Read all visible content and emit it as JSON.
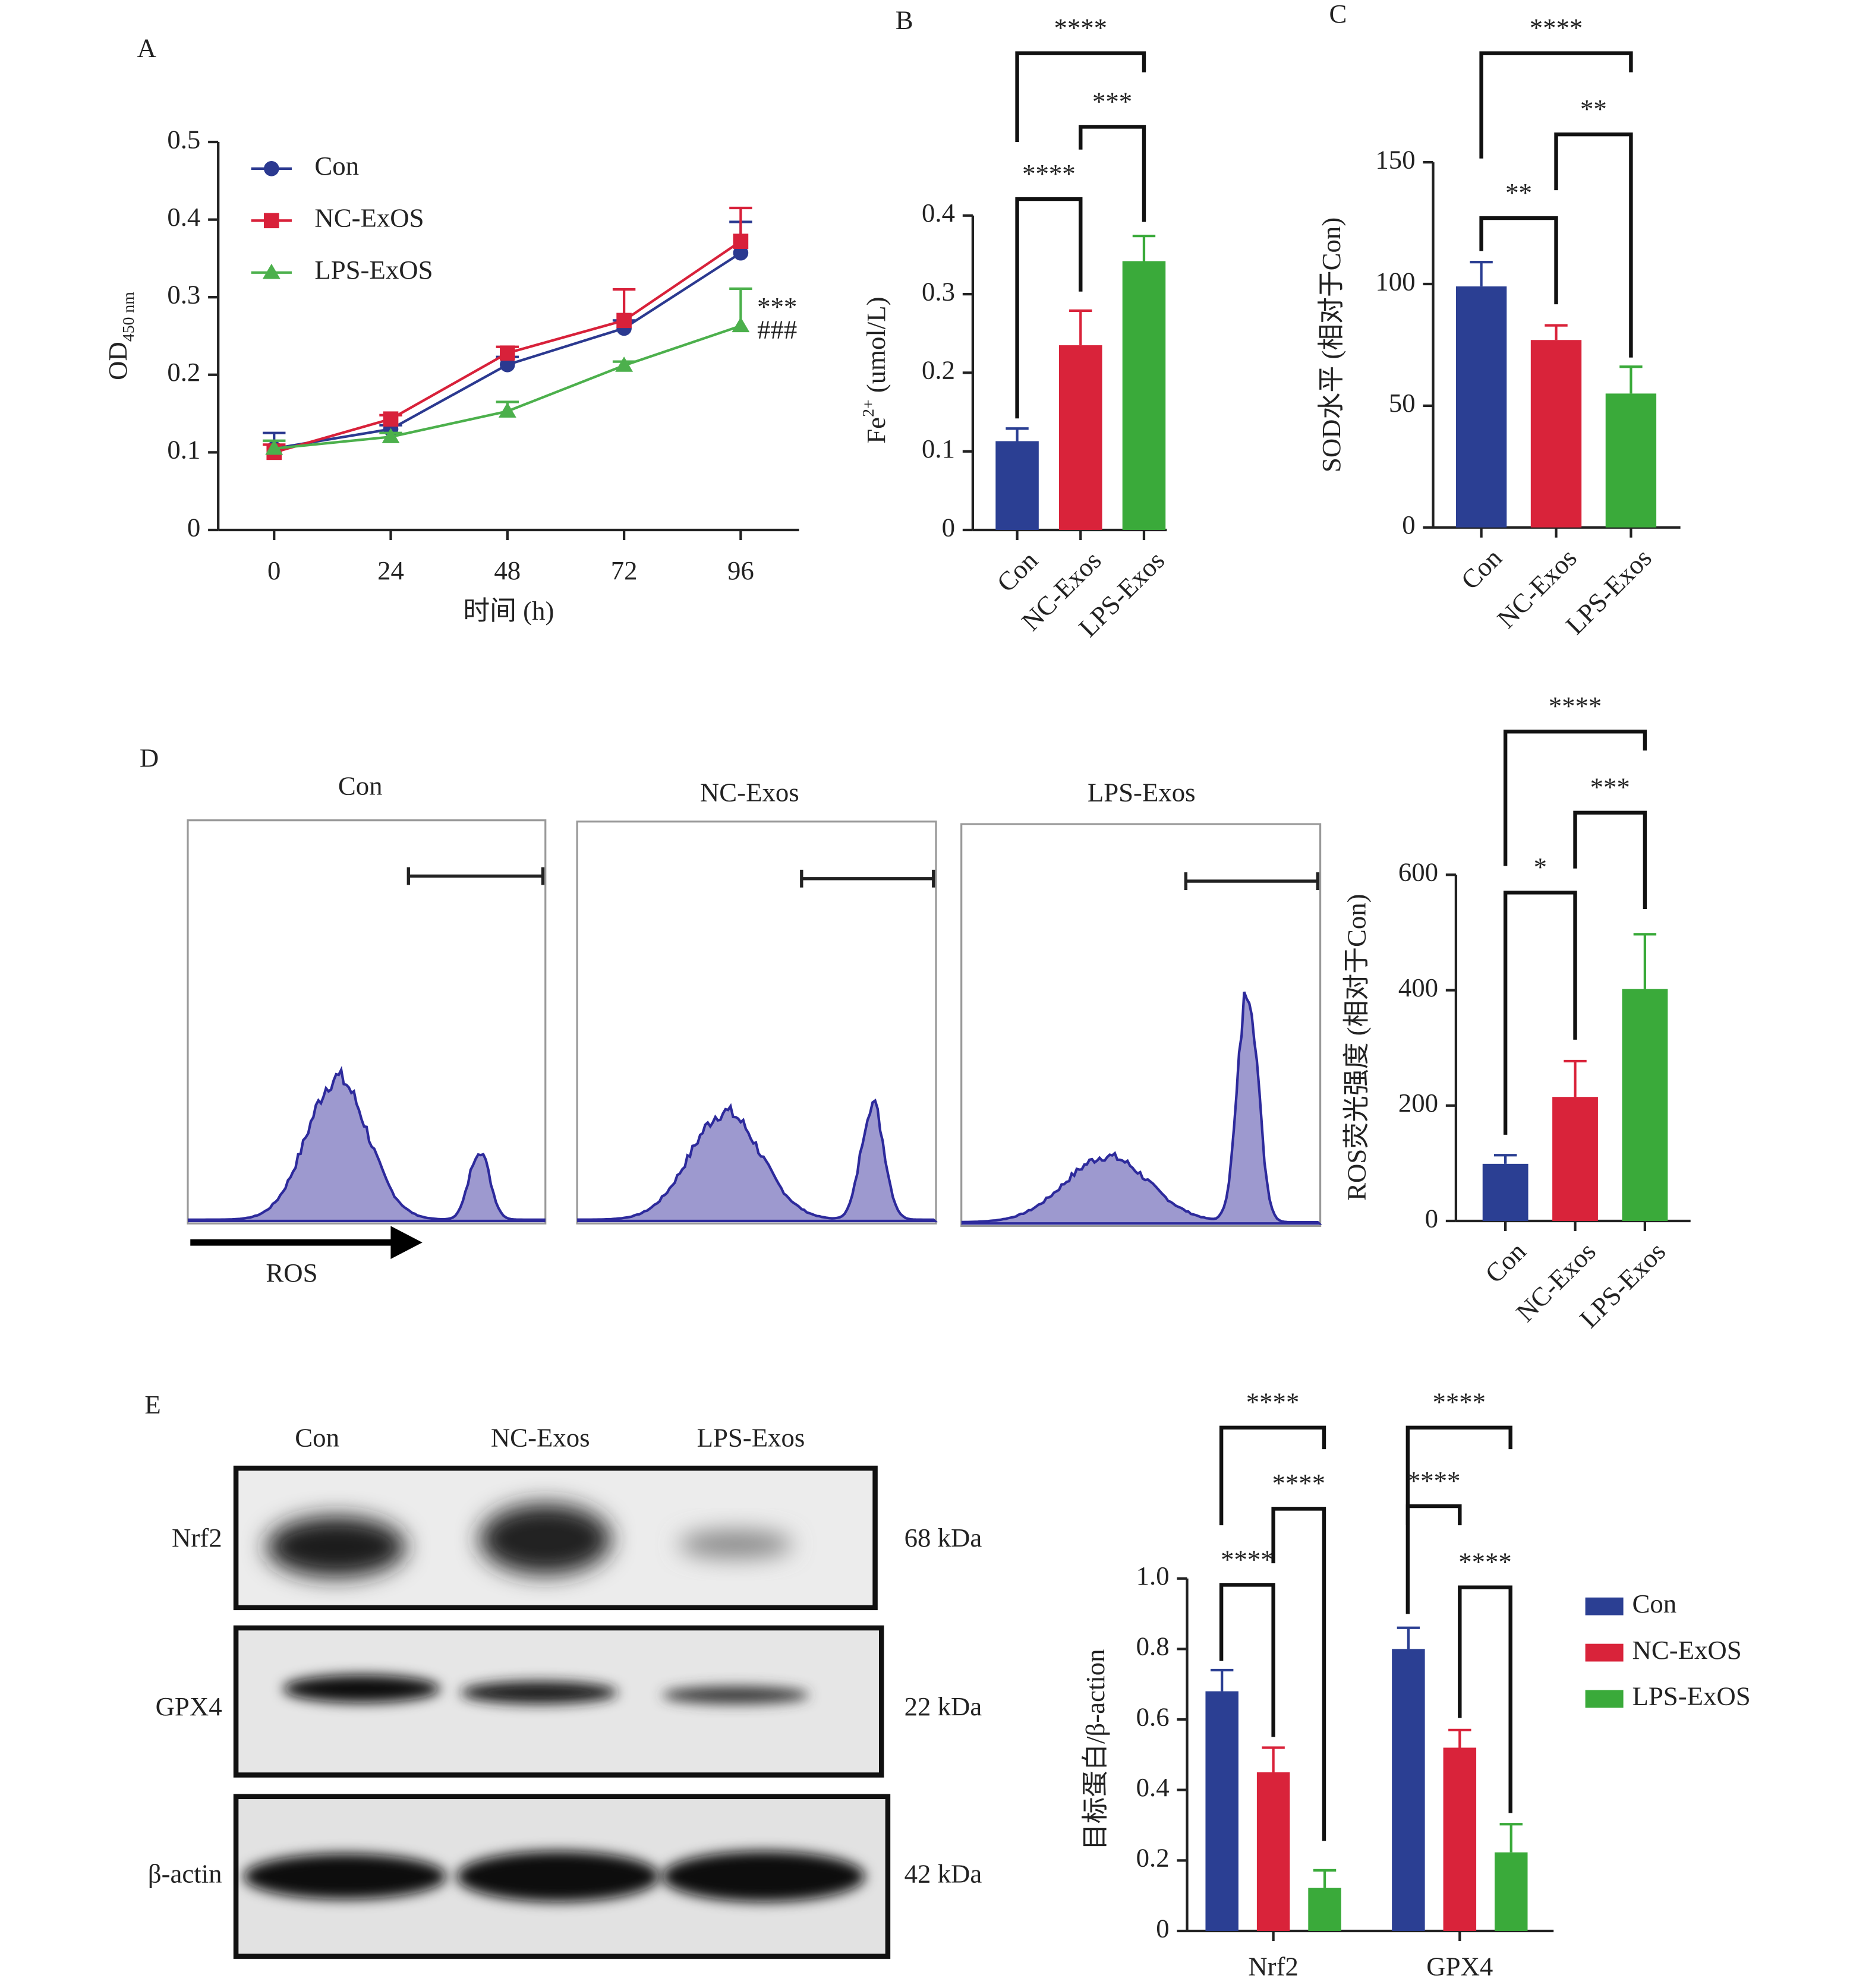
{
  "chart_data": [
    {
      "type": "line",
      "title": "A",
      "x": [
        0,
        24,
        48,
        72,
        96
      ],
      "xlim": [
        -11.5,
        108
      ],
      "xticks": [
        0,
        24,
        48,
        72,
        96
      ],
      "x_label": "时间 (h)",
      "y_label": [
        {
          "text": "OD"
        },
        {
          "text": "450 nm",
          "shift": "sub"
        }
      ],
      "ylim": [
        0,
        0.5
      ],
      "yticks": [
        0,
        0.1,
        0.2,
        0.3,
        0.4,
        0.5
      ],
      "series": [
        {
          "name": "Con",
          "color": "#2b3990",
          "marker": "circle",
          "values": [
            0.105,
            0.13,
            0.213,
            0.26,
            0.357
          ],
          "errors": [
            0.02,
            0.005,
            0.01,
            0.01,
            0.04
          ]
        },
        {
          "name": "NC-ExOS",
          "color": "#d8213a",
          "marker": "square",
          "values": [
            0.1,
            0.143,
            0.228,
            0.27,
            0.372
          ],
          "errors": [
            0.01,
            0.005,
            0.008,
            0.04,
            0.043
          ]
        },
        {
          "name": "LPS-ExOS",
          "color": "#4cb04c",
          "marker": "triangle",
          "values": [
            0.105,
            0.12,
            0.153,
            0.212,
            0.263
          ],
          "errors": [
            0.01,
            0.005,
            0.012,
            0.005,
            0.048
          ]
        }
      ],
      "annotations": [
        "***",
        "###"
      ]
    },
    {
      "type": "bar",
      "title": "B",
      "categories": [
        "Con",
        "NC-Exos",
        "LPS-Exos"
      ],
      "values": [
        0.113,
        0.235,
        0.342
      ],
      "errors": [
        0.016,
        0.044,
        0.032
      ],
      "colors": [
        "#2b3f93",
        "#d9233a",
        "#3aaa3a"
      ],
      "y_label": [
        {
          "text": "Fe"
        },
        {
          "text": "2+",
          "shift": "super"
        },
        {
          "text": " (umol/L)"
        }
      ],
      "ylim": [
        0,
        0.4
      ],
      "yticks": [
        0,
        0.1,
        0.2,
        0.3,
        0.4
      ],
      "annotations": [
        "****",
        "***",
        "****"
      ]
    },
    {
      "type": "bar",
      "title": "C",
      "categories": [
        "Con",
        "NC-Exos",
        "LPS-Exos"
      ],
      "values": [
        99,
        77,
        55
      ],
      "errors": [
        10,
        6,
        11
      ],
      "colors": [
        "#2b3f93",
        "#d9233a",
        "#3aaa3a"
      ],
      "y_label": [
        {
          "text": "SOD水平 (相对于Con)"
        }
      ],
      "ylim": [
        0,
        150
      ],
      "yticks": [
        0,
        50,
        100,
        150
      ],
      "annotations": [
        "****",
        "**",
        "**"
      ]
    },
    {
      "type": "bar",
      "categories": [
        "Con",
        "NC-Exos",
        "LPS-Exos"
      ],
      "values": [
        99,
        215,
        402
      ],
      "errors": [
        15,
        62,
        95
      ],
      "colors": [
        "#2b3f93",
        "#d9233a",
        "#3aaa3a"
      ],
      "y_label": [
        {
          "text": "ROS荧光强度 (相对于Con)"
        }
      ],
      "ylim": [
        0,
        600
      ],
      "yticks": [
        0,
        200,
        400,
        600
      ],
      "annotations": [
        "****",
        "***",
        "*"
      ]
    },
    {
      "type": "bar",
      "categories": [
        "Nrf2",
        "GPX4"
      ],
      "series": [
        {
          "name": "Con",
          "color": "#2b3f93",
          "values": [
            0.68,
            0.8
          ],
          "errors": [
            0.06,
            0.06
          ]
        },
        {
          "name": "NC-ExOS",
          "color": "#d9233a",
          "values": [
            0.45,
            0.52
          ],
          "errors": [
            0.07,
            0.05
          ]
        },
        {
          "name": "LPS-ExOS",
          "color": "#3aaa3a",
          "values": [
            0.122,
            0.223
          ],
          "errors": [
            0.05,
            0.08
          ]
        }
      ],
      "y_label": [
        {
          "text": "目标蛋白/β-action"
        }
      ],
      "ylim": [
        0,
        1
      ],
      "yticks": [
        0,
        0.2,
        0.4,
        0.6,
        0.8,
        {
          "value": 1,
          "label": "1.0"
        }
      ],
      "annotations": [
        "****",
        "****",
        "****",
        "****",
        "****",
        "****"
      ]
    }
  ],
  "flow": {
    "panel": "D",
    "titles": [
      "Con",
      "NC-Exos",
      "LPS-Exos"
    ],
    "axis_label": "ROS"
  },
  "blot": {
    "panel": "E",
    "lanes": [
      "Con",
      "NC-Exos",
      "LPS-Exos"
    ],
    "proteins": [
      "Nrf2",
      "GPX4",
      "β-actin"
    ],
    "sizes": [
      "68 kDa",
      "22 kDa",
      "42 kDa"
    ]
  }
}
